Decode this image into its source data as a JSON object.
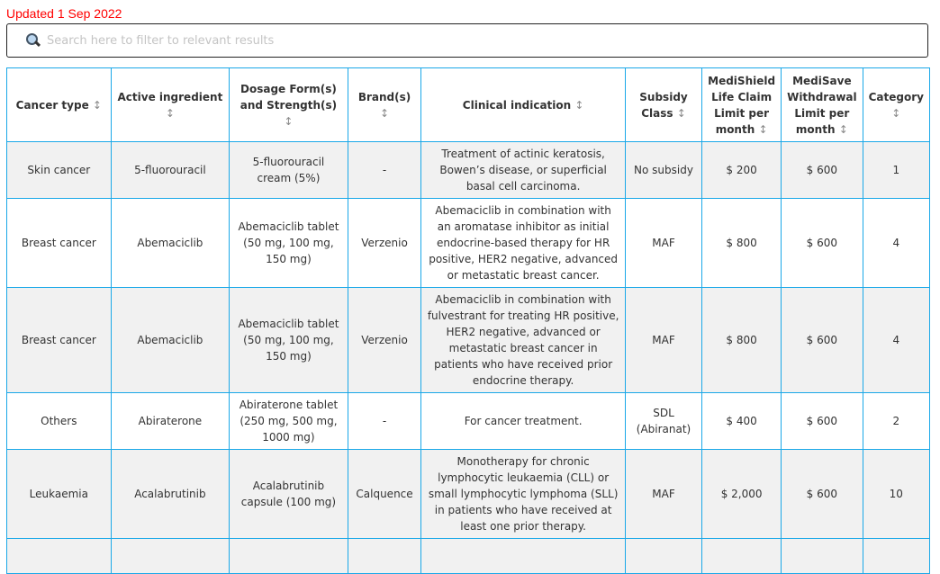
{
  "updated": "Updated 1 Sep 2022",
  "search": {
    "placeholder": "Search here to filter to relevant results",
    "icon": "magnifier-icon"
  },
  "sort_glyph": "↕",
  "columns": [
    "Cancer type",
    "Active ingredient",
    "Dosage Form(s) and Strength(s)",
    "Brand(s)",
    "Clinical indication",
    "Subsidy Class",
    "MediShield Life Claim Limit per month",
    "MediSave Withdrawal Limit per month",
    "Category"
  ],
  "rows": [
    [
      "Skin cancer",
      "5-fluorouracil",
      "5-fluorouracil cream (5%)",
      "-",
      "Treatment of actinic keratosis, Bowen’s disease, or superficial basal cell carcinoma.",
      "No subsidy",
      "$ 200",
      "$ 600",
      "1"
    ],
    [
      "Breast cancer",
      "Abemaciclib",
      "Abemaciclib tablet (50 mg, 100 mg, 150 mg)",
      "Verzenio",
      "Abemaciclib in combination with an aromatase inhibitor as initial endocrine-based therapy for HR positive, HER2 negative, advanced or metastatic breast cancer.",
      "MAF",
      "$ 800",
      "$ 600",
      "4"
    ],
    [
      "Breast cancer",
      "Abemaciclib",
      "Abemaciclib tablet (50 mg, 100 mg, 150 mg)",
      "Verzenio",
      "Abemaciclib in combination with fulvestrant for treating HR positive, HER2 negative, advanced or metastatic breast cancer in patients who have received prior endocrine therapy.",
      "MAF",
      "$ 800",
      "$ 600",
      "4"
    ],
    [
      "Others",
      "Abiraterone",
      "Abiraterone tablet (250 mg, 500 mg, 1000 mg)",
      "-",
      "For cancer treatment.",
      "SDL (Abiranat)",
      "$ 400",
      "$ 600",
      "2"
    ],
    [
      "Leukaemia",
      "Acalabrutinib",
      "Acalabrutinib capsule (100 mg)",
      "Calquence",
      "Monotherapy for chronic lymphocytic leukaemia (CLL) or small lymphocytic lymphoma (SLL) in patients who have received at least one prior therapy.",
      "MAF",
      "$ 2,000",
      "$ 600",
      "10"
    ]
  ]
}
